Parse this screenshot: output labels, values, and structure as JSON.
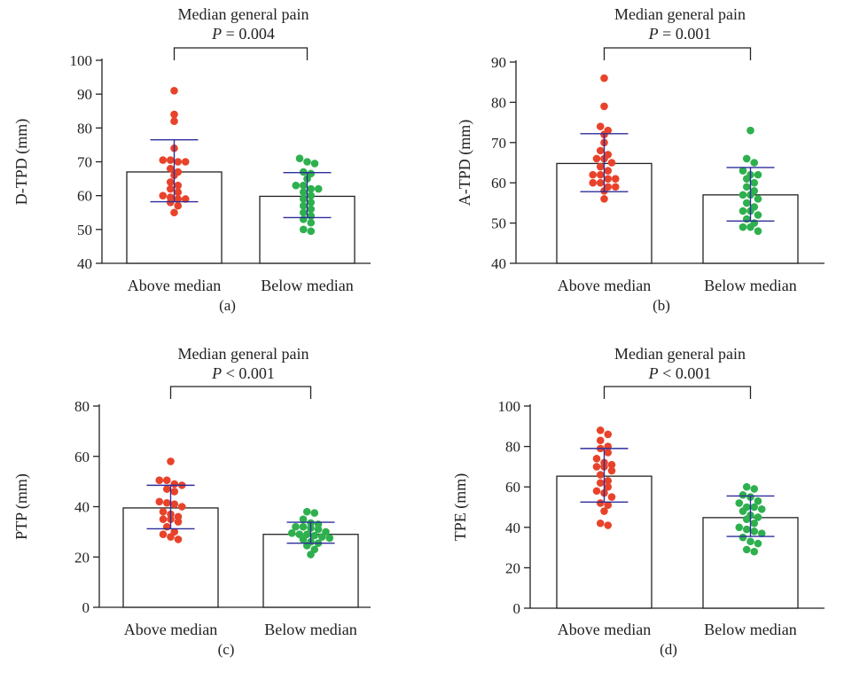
{
  "colors": {
    "above": "#e8432a",
    "below": "#2eb04e",
    "errorbar": "#2d2d9a",
    "axis": "#222222"
  },
  "chart_data": [
    {
      "type": "bar",
      "title": "Median general pain",
      "p_prefix": "P",
      "p_rest": " = 0.004",
      "ylabel": "D-TPD (mm)",
      "ylim": [
        40,
        100
      ],
      "yticks": [
        40,
        50,
        60,
        70,
        80,
        90,
        100
      ],
      "panel_label": "(a)",
      "categories": [
        "Above median",
        "Below median"
      ],
      "values": [
        67,
        59.8
      ],
      "sd": [
        [
          58.2,
          76.5
        ],
        [
          53.5,
          66.8
        ]
      ],
      "points": [
        [
          91,
          84,
          82,
          74,
          70.5,
          70.5,
          70,
          70,
          68,
          67,
          66,
          64,
          63,
          62,
          61,
          60,
          59.5,
          59,
          59,
          58,
          57,
          55
        ],
        [
          71,
          70,
          69.5,
          67,
          66.5,
          65,
          63,
          63,
          62,
          62,
          61,
          60,
          59,
          58,
          57,
          56,
          55,
          54,
          53,
          52,
          50,
          49.5
        ]
      ]
    },
    {
      "type": "bar",
      "title": "Median general pain",
      "p_prefix": "P",
      "p_rest": " = 0.001",
      "ylabel": "A-TPD (mm)",
      "ylim": [
        40,
        90
      ],
      "yticks": [
        40,
        50,
        60,
        70,
        80,
        90
      ],
      "panel_label": "(b)",
      "categories": [
        "Above median",
        "Below median"
      ],
      "values": [
        64.8,
        57
      ],
      "sd": [
        [
          57.8,
          72.2
        ],
        [
          50.5,
          63.8
        ]
      ],
      "points": [
        [
          86,
          79,
          74,
          73,
          72,
          70,
          68,
          67,
          66,
          66,
          65,
          64,
          63,
          62,
          62,
          61,
          61,
          60,
          60,
          59,
          59,
          58,
          56
        ],
        [
          73,
          66,
          65,
          63,
          62,
          62,
          61,
          60,
          59,
          58,
          57,
          57,
          56,
          55,
          54,
          53,
          53,
          52,
          51,
          50,
          49,
          49,
          48
        ]
      ]
    },
    {
      "type": "bar",
      "title": "Median general pain",
      "p_prefix": "P",
      "p_rest": " < 0.001",
      "ylabel": "PTP (mm)",
      "ylim": [
        0,
        80
      ],
      "yticks": [
        0,
        20,
        40,
        60,
        80
      ],
      "panel_label": "(c)",
      "categories": [
        "Above median",
        "Below median"
      ],
      "values": [
        39.5,
        29
      ],
      "sd": [
        [
          31.2,
          48.5
        ],
        [
          25.5,
          33.8
        ]
      ],
      "points": [
        [
          58,
          50.5,
          50.5,
          49,
          48.5,
          47,
          46,
          42,
          41.5,
          41,
          40,
          38,
          37,
          36,
          35,
          35,
          34,
          32,
          30,
          29,
          28,
          27
        ],
        [
          38,
          37.5,
          35,
          33.5,
          33,
          32,
          32,
          31.5,
          31,
          30,
          29.5,
          29,
          29,
          28.5,
          28,
          27.5,
          27,
          26,
          25.5,
          24.5,
          23,
          21
        ]
      ]
    },
    {
      "type": "bar",
      "title": "Median general pain",
      "p_prefix": "P",
      "p_rest": " < 0.001",
      "ylabel": "TPE (mm)",
      "ylim": [
        0,
        100
      ],
      "yticks": [
        0,
        20,
        40,
        60,
        80,
        100
      ],
      "panel_label": "(d)",
      "categories": [
        "Above median",
        "Below median"
      ],
      "values": [
        65.3,
        44.8
      ],
      "sd": [
        [
          52.5,
          79
        ],
        [
          35.5,
          55.5
        ]
      ],
      "points": [
        [
          88,
          86,
          83,
          80,
          79,
          77,
          74,
          72,
          71,
          70,
          70,
          68,
          66,
          63,
          62,
          60,
          58,
          57,
          55,
          52,
          51,
          48,
          42,
          41
        ],
        [
          60,
          59,
          56,
          55,
          53,
          52,
          50,
          50,
          49,
          48,
          46,
          45,
          44,
          42,
          40,
          39,
          38,
          37,
          35,
          33,
          32,
          29,
          28
        ]
      ]
    }
  ]
}
